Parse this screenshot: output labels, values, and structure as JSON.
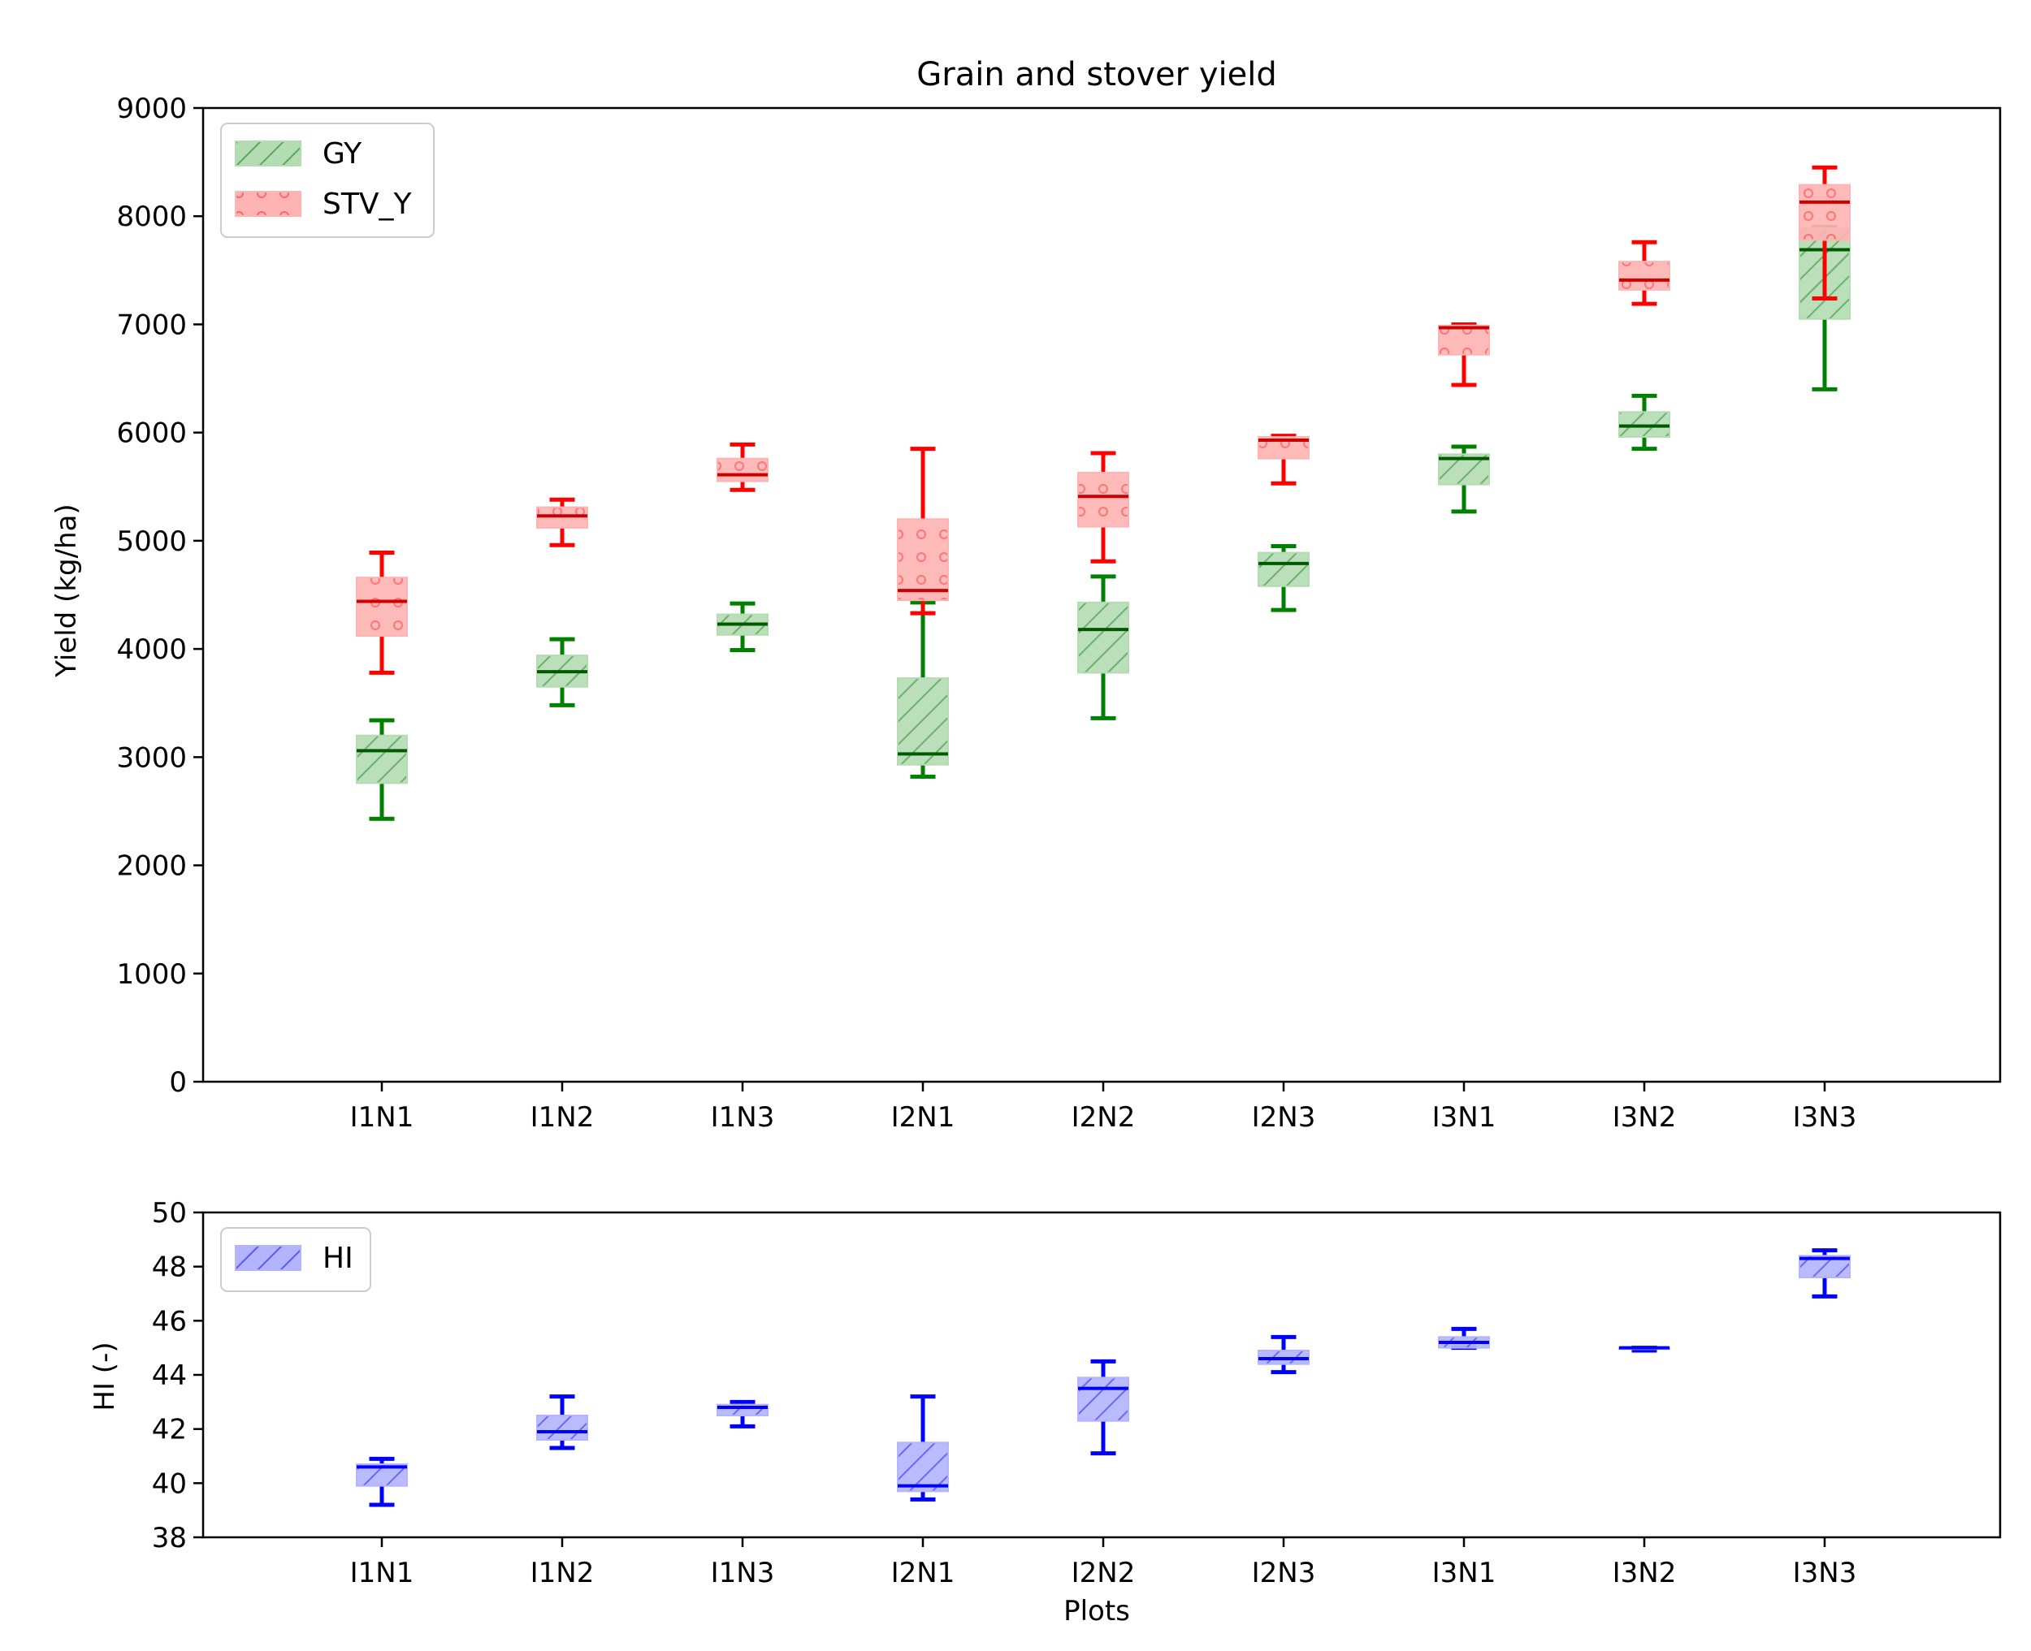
{
  "chart_data": [
    {
      "type": "box",
      "title": "Grain and stover yield",
      "xlabel": "",
      "ylabel": "Yield (kg/ha)",
      "ylim": [
        0,
        9000
      ],
      "yticks": [
        "0",
        "1000",
        "2000",
        "3000",
        "4000",
        "5000",
        "6000",
        "7000",
        "8000",
        "9000"
      ],
      "categories": [
        "I1N1",
        "I1N2",
        "I1N3",
        "I2N1",
        "I2N2",
        "I2N3",
        "I3N1",
        "I3N2",
        "I3N3"
      ],
      "grid": false,
      "legend_position": "top-left",
      "series": [
        {
          "name": "GY",
          "color": "#008000",
          "fill": "#b3dcb3",
          "hatch": "diagonal",
          "boxes": [
            {
              "min": 2430,
              "q1": 2760,
              "median": 3060,
              "q3": 3200,
              "max": 3340
            },
            {
              "min": 3480,
              "q1": 3650,
              "median": 3790,
              "q3": 3940,
              "max": 4090
            },
            {
              "min": 3990,
              "q1": 4130,
              "median": 4230,
              "q3": 4320,
              "max": 4420
            },
            {
              "min": 2820,
              "q1": 2930,
              "median": 3030,
              "q3": 3730,
              "max": 4430
            },
            {
              "min": 3360,
              "q1": 3780,
              "median": 4180,
              "q3": 4430,
              "max": 4670
            },
            {
              "min": 4360,
              "q1": 4580,
              "median": 4790,
              "q3": 4890,
              "max": 4950
            },
            {
              "min": 5270,
              "q1": 5520,
              "median": 5760,
              "q3": 5800,
              "max": 5870
            },
            {
              "min": 5850,
              "q1": 5960,
              "median": 6060,
              "q3": 6190,
              "max": 6340
            },
            {
              "min": 6400,
              "q1": 7050,
              "median": 7690,
              "q3": 7890,
              "max": 7900
            }
          ]
        },
        {
          "name": "STV_Y",
          "color": "#ff0000",
          "fill": "#ffb3b3",
          "hatch": "dots",
          "boxes": [
            {
              "min": 3780,
              "q1": 4120,
              "median": 4440,
              "q3": 4660,
              "max": 4890
            },
            {
              "min": 4960,
              "q1": 5120,
              "median": 5230,
              "q3": 5310,
              "max": 5380
            },
            {
              "min": 5470,
              "q1": 5550,
              "median": 5610,
              "q3": 5760,
              "max": 5890
            },
            {
              "min": 4330,
              "q1": 4450,
              "median": 4540,
              "q3": 5200,
              "max": 5850
            },
            {
              "min": 4810,
              "q1": 5130,
              "median": 5410,
              "q3": 5630,
              "max": 5810
            },
            {
              "min": 5530,
              "q1": 5760,
              "median": 5930,
              "q3": 5960,
              "max": 5970
            },
            {
              "min": 6440,
              "q1": 6720,
              "median": 6970,
              "q3": 6990,
              "max": 7000
            },
            {
              "min": 7190,
              "q1": 7320,
              "median": 7410,
              "q3": 7580,
              "max": 7760
            },
            {
              "min": 7240,
              "q1": 7780,
              "median": 8130,
              "q3": 8290,
              "max": 8450
            }
          ]
        }
      ]
    },
    {
      "type": "box",
      "title": "",
      "xlabel": "Plots",
      "ylabel": "HI (-)",
      "ylim": [
        38,
        50
      ],
      "yticks": [
        "38",
        "40",
        "42",
        "44",
        "46",
        "48",
        "50"
      ],
      "categories": [
        "I1N1",
        "I1N2",
        "I1N3",
        "I2N1",
        "I2N2",
        "I2N3",
        "I3N1",
        "I3N2",
        "I3N3"
      ],
      "grid": false,
      "legend_position": "top-left",
      "series": [
        {
          "name": "HI",
          "color": "#0000ff",
          "fill": "#b3b3ff",
          "hatch": "diagonal",
          "boxes": [
            {
              "min": 39.2,
              "q1": 39.9,
              "median": 40.6,
              "q3": 40.7,
              "max": 40.9
            },
            {
              "min": 41.3,
              "q1": 41.6,
              "median": 41.9,
              "q3": 42.5,
              "max": 43.2
            },
            {
              "min": 42.1,
              "q1": 42.5,
              "median": 42.8,
              "q3": 42.9,
              "max": 43.0
            },
            {
              "min": 39.4,
              "q1": 39.7,
              "median": 39.9,
              "q3": 41.5,
              "max": 43.2
            },
            {
              "min": 41.1,
              "q1": 42.3,
              "median": 43.5,
              "q3": 43.9,
              "max": 44.5
            },
            {
              "min": 44.1,
              "q1": 44.4,
              "median": 44.6,
              "q3": 44.9,
              "max": 45.4
            },
            {
              "min": 45.0,
              "q1": 45.0,
              "median": 45.2,
              "q3": 45.4,
              "max": 45.7
            },
            {
              "min": 44.9,
              "q1": 44.95,
              "median": 45.0,
              "q3": 45.0,
              "max": 45.0
            },
            {
              "min": 46.9,
              "q1": 47.6,
              "median": 48.3,
              "q3": 48.4,
              "max": 48.6
            }
          ]
        }
      ]
    }
  ]
}
